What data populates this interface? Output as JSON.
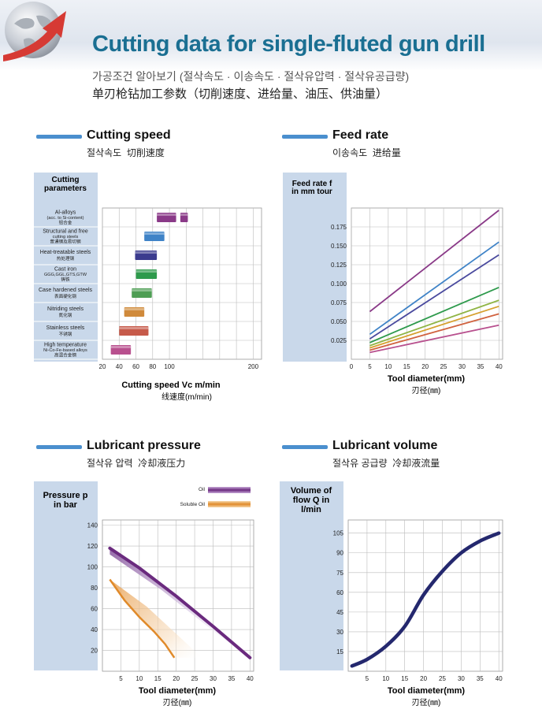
{
  "header": {
    "title": "Cutting data for single-fluted gun drill",
    "subtitle_kr": "가공조건 알아보기 (절삭속도 · 이송속도 · 절삭유압력 · 절삭유공급량)",
    "subtitle_cn": "单刃枪钻加工参数（切削速度、进给量、油压、供油量）"
  },
  "sections": {
    "cutting_speed": {
      "title": "Cutting speed",
      "sub_kr": "절삭속도",
      "sub_cn": "切削速度"
    },
    "feed_rate": {
      "title": "Feed rate",
      "sub_kr": "이송속도",
      "sub_cn": "进给量"
    },
    "lub_pressure": {
      "title": "Lubricant pressure",
      "sub_kr": "절삭유 압력",
      "sub_cn": "冷却液压力"
    },
    "lub_volume": {
      "title": "Lubricant volume",
      "sub_kr": "절삭유 공급량",
      "sub_cn": "冷却液流量"
    }
  },
  "chart_data": [
    {
      "type": "bar",
      "orientation": "horizontal-range",
      "ylabel": "Cutting parameters",
      "xlabel": "Cutting speed Vc m/min",
      "xlabel_cn": "线速度(m/min)",
      "xticks": [
        20,
        40,
        60,
        80,
        100,
        120,
        140,
        160,
        180,
        200
      ],
      "xtick_labels": [
        "20",
        "40",
        "60",
        "80",
        "100",
        "",
        "",
        "",
        "",
        "200"
      ],
      "xlim": [
        20,
        210
      ],
      "categories": [
        {
          "label": [
            "Al-alloys",
            "(acc. to Si-content)",
            "铝合金"
          ],
          "ranges": [
            [
              85,
              108
            ],
            [
              113,
              122
            ]
          ],
          "color": "#8a3a88"
        },
        {
          "label": [
            "Structural and free",
            "cutting steels",
            "普通钢及易切钢"
          ],
          "ranges": [
            [
              70,
              94
            ]
          ],
          "color": "#3f83c7"
        },
        {
          "label": [
            "Heat-treatable steels",
            "热处理钢"
          ],
          "ranges": [
            [
              59,
              85
            ]
          ],
          "color": "#3b3b8e"
        },
        {
          "label": [
            "Cast iron",
            "GGG,GGL,GTS,GTW",
            "铸铁"
          ],
          "ranges": [
            [
              60,
              85
            ]
          ],
          "color": "#2e9a4c"
        },
        {
          "label": [
            "Case hardened steels",
            "表面硬化钢"
          ],
          "ranges": [
            [
              55,
              79
            ]
          ],
          "color": "#4e9e54"
        },
        {
          "label": [
            "Nitriding steels",
            "氮化钢"
          ],
          "ranges": [
            [
              46,
              70
            ]
          ],
          "color": "#d08a3b"
        },
        {
          "label": [
            "Stainless steels",
            "不锈钢"
          ],
          "ranges": [
            [
              40,
              75
            ]
          ],
          "color": "#c65a4a"
        },
        {
          "label": [
            "High temperature",
            "Ni-Co-Fe-based alloys",
            "高温合金钢"
          ],
          "ranges": [
            [
              30,
              54
            ]
          ],
          "color": "#b8508e"
        }
      ]
    },
    {
      "type": "line",
      "ylabel": "Feed rate f in mm tour",
      "xlabel": "Tool diameter(mm)",
      "xlabel_cn": "刃径(㎜)",
      "xlim": [
        0,
        41
      ],
      "ylim": [
        0,
        0.2
      ],
      "xticks": [
        0,
        5,
        10,
        15,
        20,
        25,
        30,
        35,
        40
      ],
      "yticks": [
        0.025,
        0.05,
        0.075,
        0.1,
        0.125,
        0.15,
        0.175
      ],
      "ytick_labels": [
        "0.025",
        "0.050",
        "0.075",
        "0.100",
        "0.125",
        "0.150",
        "0.175"
      ],
      "series": [
        {
          "color": "#8a3a88",
          "x": [
            5,
            40
          ],
          "y": [
            0.063,
            0.197
          ]
        },
        {
          "color": "#3f83c7",
          "x": [
            5,
            40
          ],
          "y": [
            0.033,
            0.155
          ]
        },
        {
          "color": "#4a4a9e",
          "x": [
            5,
            40
          ],
          "y": [
            0.027,
            0.138
          ]
        },
        {
          "color": "#2e9a4c",
          "x": [
            5,
            40
          ],
          "y": [
            0.022,
            0.095
          ]
        },
        {
          "color": "#8fb444",
          "x": [
            5,
            40
          ],
          "y": [
            0.018,
            0.078
          ]
        },
        {
          "color": "#d6a02e",
          "x": [
            5,
            40
          ],
          "y": [
            0.015,
            0.07
          ]
        },
        {
          "color": "#d0623f",
          "x": [
            5,
            40
          ],
          "y": [
            0.012,
            0.06
          ]
        },
        {
          "color": "#b8508e",
          "x": [
            5,
            40
          ],
          "y": [
            0.009,
            0.045
          ]
        }
      ]
    },
    {
      "type": "area",
      "ylabel": "Pressure p in bar",
      "xlabel": "Tool diameter(mm)",
      "xlabel_cn": "刃径(㎜)",
      "xlim": [
        0,
        41
      ],
      "ylim": [
        0,
        145
      ],
      "xticks": [
        5,
        10,
        15,
        20,
        25,
        30,
        35,
        40
      ],
      "yticks": [
        20,
        40,
        60,
        80,
        100,
        120,
        140
      ],
      "legend": [
        "Oil",
        "Soluble Oil"
      ],
      "legend_placement": "top-right",
      "series": [
        {
          "name": "Oil",
          "color": "#6a2a7e",
          "x": [
            2,
            10,
            20,
            30,
            40
          ],
          "y": [
            118,
            99,
            72,
            43,
            13
          ]
        },
        {
          "name": "Soluble Oil",
          "color": "#e08a2a",
          "x": [
            2,
            6,
            10,
            14,
            17,
            19.5
          ],
          "y": [
            88,
            68,
            52,
            38,
            26,
            13
          ]
        }
      ]
    },
    {
      "type": "line",
      "ylabel": "Volume of flow Q in l/min",
      "xlabel": "Tool diameter(mm)",
      "xlabel_cn": "刃径(㎜)",
      "xlim": [
        0,
        41
      ],
      "ylim": [
        0,
        115
      ],
      "xticks": [
        5,
        10,
        15,
        20,
        25,
        30,
        35,
        40
      ],
      "yticks": [
        15,
        30,
        45,
        60,
        75,
        90,
        105
      ],
      "series": [
        {
          "color": "#24286e",
          "x": [
            1,
            5,
            10,
            15,
            20,
            25,
            30,
            35,
            40
          ],
          "y": [
            4,
            9,
            19,
            34,
            58,
            76,
            90,
            99,
            105
          ]
        }
      ]
    }
  ]
}
